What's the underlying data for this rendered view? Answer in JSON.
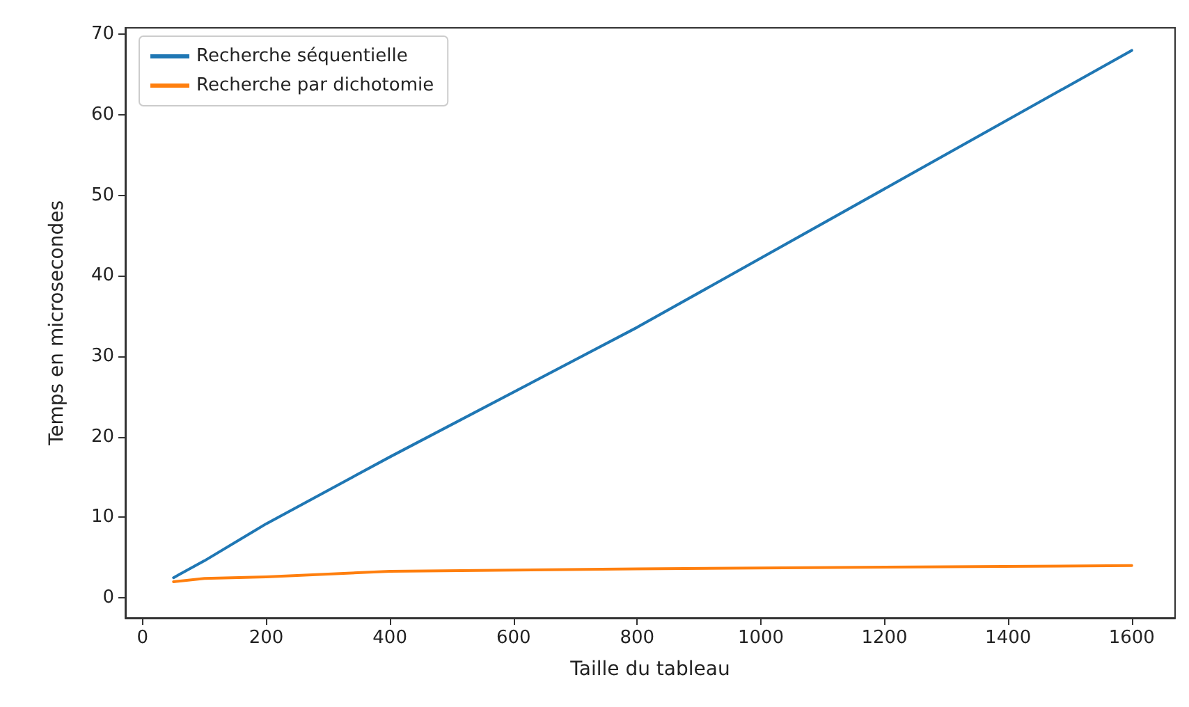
{
  "chart_data": {
    "type": "line",
    "xlabel": "Taille du tableau",
    "ylabel": "Temps en microsecondes",
    "x": [
      50,
      100,
      200,
      400,
      800,
      1600
    ],
    "series": [
      {
        "name": "Recherche séquentielle",
        "color": "#1f77b4",
        "values": [
          2.5,
          4.6,
          9.2,
          17.5,
          33.6,
          68
        ]
      },
      {
        "name": "Recherche par dichotomie",
        "color": "#ff7f0e",
        "values": [
          2.0,
          2.4,
          2.6,
          3.3,
          3.6,
          4.0
        ]
      }
    ],
    "xlim": [
      -28,
      1670
    ],
    "xticks": [
      0,
      200,
      400,
      600,
      800,
      1000,
      1200,
      1400,
      1600
    ],
    "ylim": [
      -2.5,
      70.8
    ],
    "yticks": [
      0,
      10,
      20,
      30,
      40,
      50,
      60,
      70
    ],
    "grid": false,
    "legend": "top left",
    "marker": "none",
    "line_style": "solid"
  }
}
